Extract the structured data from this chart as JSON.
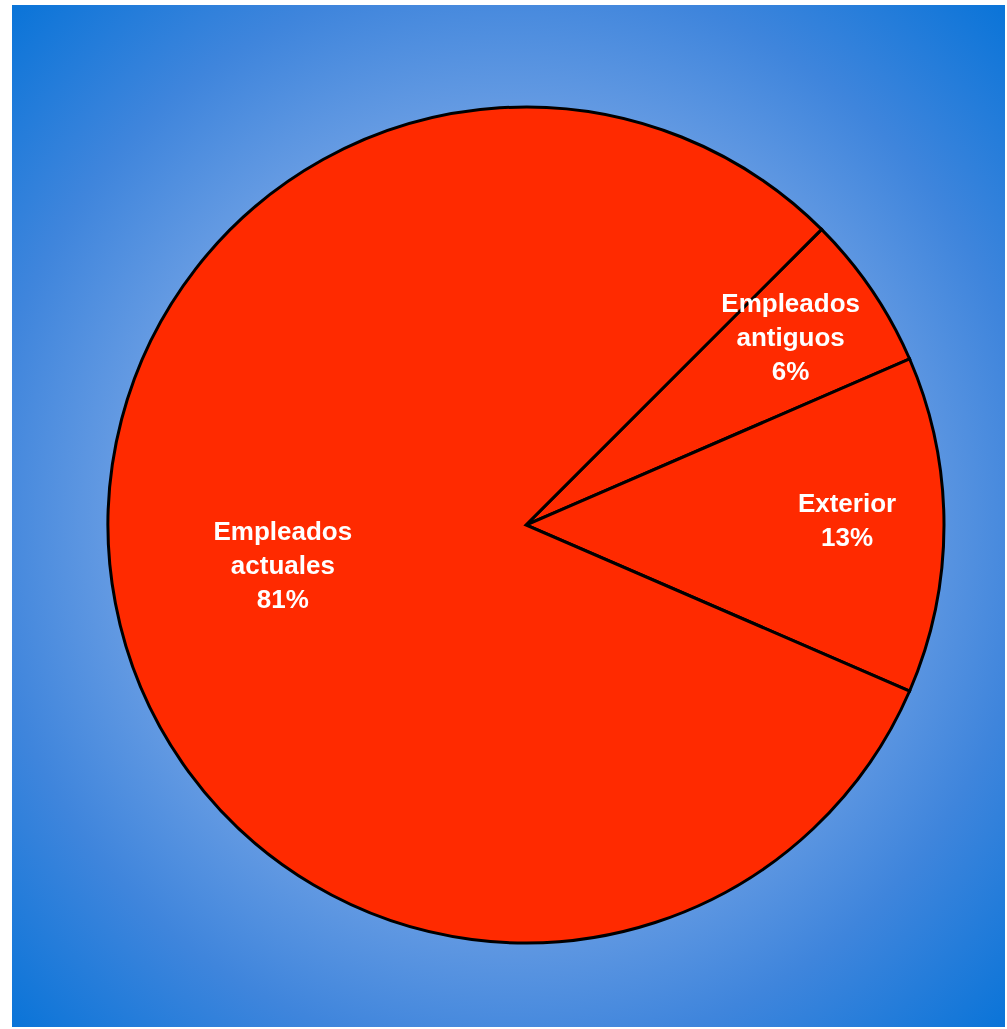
{
  "chart_data": {
    "type": "pie",
    "categories": [
      "Empleados antiguos",
      "Exterior",
      "Empleados actuales"
    ],
    "values": [
      6,
      13,
      81
    ],
    "colors": [
      "#ff2a00",
      "#ff2a00",
      "#ff2a00"
    ],
    "value_labels": [
      "6%",
      "13%",
      "81%"
    ]
  }
}
